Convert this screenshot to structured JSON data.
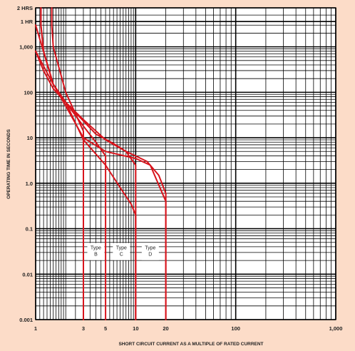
{
  "chart_data": {
    "type": "line",
    "title": "",
    "xlabel": "SHORT CIRCUIT CURRENT AS A MULTIPLE OF RATED CURRENT",
    "ylabel": "OPERATING TIME IN SECONDS",
    "x_scale": "log",
    "y_scale": "log",
    "xlim": [
      1,
      1000
    ],
    "ylim": [
      0.001,
      7200
    ],
    "grid": true,
    "x_ticks": [
      {
        "value": 1,
        "label": "1"
      },
      {
        "value": 3,
        "label": "3"
      },
      {
        "value": 5,
        "label": "5"
      },
      {
        "value": 10,
        "label": "10"
      },
      {
        "value": 20,
        "label": "20"
      },
      {
        "value": 100,
        "label": "100"
      },
      {
        "value": 1000,
        "label": "1,000"
      }
    ],
    "y_ticks": [
      {
        "value": 7200,
        "label": "2 HRS"
      },
      {
        "value": 3600,
        "label": "1 HR"
      },
      {
        "value": 1000,
        "label": "1,000"
      },
      {
        "value": 100,
        "label": "100"
      },
      {
        "value": 10,
        "label": "10"
      },
      {
        "value": 1,
        "label": "1.0"
      },
      {
        "value": 0.1,
        "label": "0.1"
      },
      {
        "value": 0.01,
        "label": "0.01"
      },
      {
        "value": 0.001,
        "label": "0.001"
      }
    ],
    "band_curves": [
      {
        "x": [
          1.13,
          1.13,
          1.2,
          1.5,
          2,
          3,
          4,
          5,
          5,
          5
        ],
        "y": [
          7200,
          3000,
          800,
          150,
          60,
          18,
          8,
          4,
          1.5,
          0.001
        ]
      },
      {
        "x": [
          1.45,
          1.45,
          1.5,
          2,
          3,
          3,
          3
        ],
        "y": [
          7200,
          3000,
          1000,
          100,
          14,
          1,
          0.001
        ]
      },
      {
        "x": [
          1.13,
          1.13,
          1.2,
          1.5,
          2,
          4,
          6,
          8,
          10,
          10,
          10
        ],
        "y": [
          7200,
          3000,
          800,
          150,
          60,
          12,
          7.5,
          5,
          2.5,
          1,
          0.001
        ]
      },
      {
        "x": [
          1,
          1.5,
          2,
          3,
          5,
          7,
          9,
          10,
          10
        ],
        "y": [
          800,
          150,
          60,
          9,
          2.5,
          0.8,
          0.35,
          0.2,
          0.001
        ]
      },
      {
        "x": [
          1,
          1.2,
          1.5,
          2,
          3,
          5,
          8,
          10,
          13,
          17,
          20,
          20,
          20
        ],
        "y": [
          800,
          300,
          120,
          60,
          25,
          9,
          5,
          4,
          3,
          1.5,
          0.6,
          0.4,
          0.001
        ]
      },
      {
        "x": [
          1,
          1.5,
          2,
          3,
          5,
          10,
          14,
          20,
          20
        ],
        "y": [
          3000,
          150,
          50,
          10,
          5,
          3.5,
          2.5,
          0.4,
          0.001
        ]
      }
    ],
    "annotations": [
      {
        "label_line1": "Type",
        "label_line2": "B",
        "x": 4
      },
      {
        "label_line1": "Type",
        "label_line2": "C",
        "x": 7.2
      },
      {
        "label_line1": "Type",
        "label_line2": "D",
        "x": 14
      }
    ]
  }
}
